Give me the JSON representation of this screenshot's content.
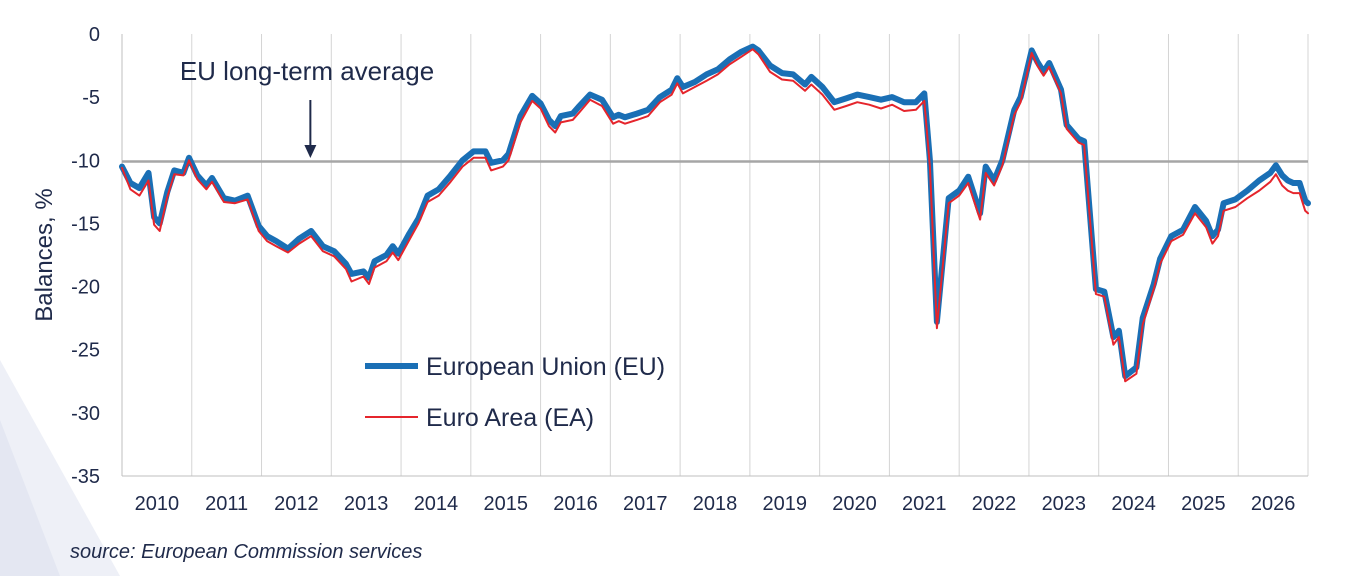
{
  "chart_data": {
    "type": "line",
    "title": "",
    "ylabel": "Balances, %",
    "xlabel": "",
    "ylim": [
      -35,
      0
    ],
    "xlim": [
      2009.5,
      2026.5
    ],
    "yticks": [
      "0",
      "-5",
      "-10",
      "-15",
      "-20",
      "-25",
      "-30",
      "-35"
    ],
    "xticks": [
      "2010",
      "2011",
      "2012",
      "2013",
      "2014",
      "2015",
      "2016",
      "2017",
      "2018",
      "2019",
      "2020",
      "2021",
      "2022",
      "2023",
      "2024",
      "2025",
      "2026"
    ],
    "grid": "vertical",
    "legend_position": "bottom-left",
    "annotation": {
      "text": "EU long-term average",
      "x": 2012.2,
      "y": -10.1
    },
    "reference_line": {
      "y": -10.1
    },
    "series": [
      {
        "name": "European Union (EU)",
        "color": "#1a6fb5",
        "points": [
          [
            2009.5,
            -10.5
          ],
          [
            2009.62,
            -11.8
          ],
          [
            2009.75,
            -12.2
          ],
          [
            2009.88,
            -11.0
          ],
          [
            2009.96,
            -14.5
          ],
          [
            2010.04,
            -15.0
          ],
          [
            2010.15,
            -12.5
          ],
          [
            2010.25,
            -10.8
          ],
          [
            2010.38,
            -11.0
          ],
          [
            2010.46,
            -9.8
          ],
          [
            2010.58,
            -11.2
          ],
          [
            2010.71,
            -12.0
          ],
          [
            2010.79,
            -11.4
          ],
          [
            2010.96,
            -13.0
          ],
          [
            2011.12,
            -13.2
          ],
          [
            2011.3,
            -12.8
          ],
          [
            2011.46,
            -15.2
          ],
          [
            2011.58,
            -16.0
          ],
          [
            2011.71,
            -16.4
          ],
          [
            2011.88,
            -17.0
          ],
          [
            2012.04,
            -16.2
          ],
          [
            2012.21,
            -15.6
          ],
          [
            2012.38,
            -16.8
          ],
          [
            2012.54,
            -17.2
          ],
          [
            2012.71,
            -18.2
          ],
          [
            2012.79,
            -19.0
          ],
          [
            2012.96,
            -18.8
          ],
          [
            2013.04,
            -19.3
          ],
          [
            2013.12,
            -18.0
          ],
          [
            2013.29,
            -17.5
          ],
          [
            2013.38,
            -16.8
          ],
          [
            2013.46,
            -17.4
          ],
          [
            2013.62,
            -15.8
          ],
          [
            2013.75,
            -14.6
          ],
          [
            2013.88,
            -12.8
          ],
          [
            2014.04,
            -12.3
          ],
          [
            2014.21,
            -11.2
          ],
          [
            2014.38,
            -10.0
          ],
          [
            2014.54,
            -9.3
          ],
          [
            2014.71,
            -9.3
          ],
          [
            2014.79,
            -10.2
          ],
          [
            2014.96,
            -10.0
          ],
          [
            2015.04,
            -9.5
          ],
          [
            2015.21,
            -6.5
          ],
          [
            2015.38,
            -4.9
          ],
          [
            2015.5,
            -5.5
          ],
          [
            2015.62,
            -6.8
          ],
          [
            2015.71,
            -7.3
          ],
          [
            2015.79,
            -6.5
          ],
          [
            2015.96,
            -6.3
          ],
          [
            2016.04,
            -5.8
          ],
          [
            2016.21,
            -4.8
          ],
          [
            2016.38,
            -5.2
          ],
          [
            2016.54,
            -6.6
          ],
          [
            2016.62,
            -6.4
          ],
          [
            2016.71,
            -6.6
          ],
          [
            2016.88,
            -6.3
          ],
          [
            2017.04,
            -6.0
          ],
          [
            2017.21,
            -5.0
          ],
          [
            2017.38,
            -4.4
          ],
          [
            2017.46,
            -3.5
          ],
          [
            2017.54,
            -4.2
          ],
          [
            2017.71,
            -3.8
          ],
          [
            2017.88,
            -3.2
          ],
          [
            2018.04,
            -2.8
          ],
          [
            2018.21,
            -2.0
          ],
          [
            2018.38,
            -1.4
          ],
          [
            2018.54,
            -1.0
          ],
          [
            2018.62,
            -1.3
          ],
          [
            2018.79,
            -2.5
          ],
          [
            2018.96,
            -3.1
          ],
          [
            2019.12,
            -3.2
          ],
          [
            2019.29,
            -4.0
          ],
          [
            2019.38,
            -3.4
          ],
          [
            2019.54,
            -4.2
          ],
          [
            2019.71,
            -5.4
          ],
          [
            2019.88,
            -5.1
          ],
          [
            2020.04,
            -4.8
          ],
          [
            2020.21,
            -5.0
          ],
          [
            2020.38,
            -5.2
          ],
          [
            2020.54,
            -5.0
          ],
          [
            2020.71,
            -5.4
          ],
          [
            2020.88,
            -5.4
          ],
          [
            2021.0,
            -4.7
          ],
          [
            2021.08,
            -10.0
          ],
          [
            2021.18,
            -22.8
          ],
          [
            2021.35,
            -13.0
          ],
          [
            2021.5,
            -12.4
          ],
          [
            2021.63,
            -11.3
          ],
          [
            2021.8,
            -14.2
          ],
          [
            2021.88,
            -10.5
          ],
          [
            2022.0,
            -11.6
          ],
          [
            2022.12,
            -10.0
          ],
          [
            2022.29,
            -6.0
          ],
          [
            2022.38,
            -5.0
          ],
          [
            2022.54,
            -1.3
          ],
          [
            2022.62,
            -2.2
          ],
          [
            2022.71,
            -3.0
          ],
          [
            2022.79,
            -2.3
          ],
          [
            2022.96,
            -4.4
          ],
          [
            2023.04,
            -7.2
          ],
          [
            2023.21,
            -8.3
          ],
          [
            2023.29,
            -8.5
          ],
          [
            2023.46,
            -20.2
          ],
          [
            2023.58,
            -20.4
          ],
          [
            2023.71,
            -24.0
          ],
          [
            2023.79,
            -23.5
          ],
          [
            2023.88,
            -27.1
          ],
          [
            2024.04,
            -26.4
          ],
          [
            2024.13,
            -22.5
          ],
          [
            2024.29,
            -19.8
          ],
          [
            2024.38,
            -17.8
          ],
          [
            2024.54,
            -16.0
          ],
          [
            2024.71,
            -15.5
          ],
          [
            2024.88,
            -13.7
          ],
          [
            2025.04,
            -14.8
          ],
          [
            2025.13,
            -16.0
          ],
          [
            2025.21,
            -15.5
          ],
          [
            2025.29,
            -13.4
          ],
          [
            2025.46,
            -13.1
          ],
          [
            2025.63,
            -12.4
          ],
          [
            2025.8,
            -11.6
          ],
          [
            2025.96,
            -11.0
          ],
          [
            2026.04,
            -10.4
          ],
          [
            2026.13,
            -11.2
          ],
          [
            2026.21,
            -11.6
          ],
          [
            2026.29,
            -11.8
          ],
          [
            2026.38,
            -11.8
          ],
          [
            2026.46,
            -13.2
          ],
          [
            2026.5,
            -13.4
          ]
        ]
      },
      {
        "name": "Euro Area (EA)",
        "color": "#e5252c",
        "points": [
          [
            2009.5,
            -10.6
          ],
          [
            2009.62,
            -12.3
          ],
          [
            2009.75,
            -12.8
          ],
          [
            2009.88,
            -11.6
          ],
          [
            2009.96,
            -15.1
          ],
          [
            2010.04,
            -15.6
          ],
          [
            2010.15,
            -12.9
          ],
          [
            2010.25,
            -11.1
          ],
          [
            2010.38,
            -11.2
          ],
          [
            2010.46,
            -10.0
          ],
          [
            2010.58,
            -11.5
          ],
          [
            2010.71,
            -12.3
          ],
          [
            2010.79,
            -11.7
          ],
          [
            2010.96,
            -13.3
          ],
          [
            2011.12,
            -13.4
          ],
          [
            2011.3,
            -13.1
          ],
          [
            2011.46,
            -15.6
          ],
          [
            2011.58,
            -16.4
          ],
          [
            2011.71,
            -16.8
          ],
          [
            2011.88,
            -17.3
          ],
          [
            2012.04,
            -16.6
          ],
          [
            2012.21,
            -16.0
          ],
          [
            2012.38,
            -17.2
          ],
          [
            2012.54,
            -17.6
          ],
          [
            2012.71,
            -18.6
          ],
          [
            2012.79,
            -19.6
          ],
          [
            2012.96,
            -19.2
          ],
          [
            2013.04,
            -19.8
          ],
          [
            2013.12,
            -18.5
          ],
          [
            2013.29,
            -18.0
          ],
          [
            2013.38,
            -17.3
          ],
          [
            2013.46,
            -17.9
          ],
          [
            2013.62,
            -16.3
          ],
          [
            2013.75,
            -15.0
          ],
          [
            2013.88,
            -13.3
          ],
          [
            2014.04,
            -12.8
          ],
          [
            2014.21,
            -11.7
          ],
          [
            2014.38,
            -10.5
          ],
          [
            2014.54,
            -9.8
          ],
          [
            2014.71,
            -9.8
          ],
          [
            2014.79,
            -10.8
          ],
          [
            2014.96,
            -10.5
          ],
          [
            2015.04,
            -10.0
          ],
          [
            2015.21,
            -7.0
          ],
          [
            2015.38,
            -5.3
          ],
          [
            2015.5,
            -5.9
          ],
          [
            2015.62,
            -7.3
          ],
          [
            2015.71,
            -7.8
          ],
          [
            2015.79,
            -7.0
          ],
          [
            2015.96,
            -6.8
          ],
          [
            2016.04,
            -6.3
          ],
          [
            2016.21,
            -5.2
          ],
          [
            2016.38,
            -5.7
          ],
          [
            2016.54,
            -7.1
          ],
          [
            2016.62,
            -6.9
          ],
          [
            2016.71,
            -7.1
          ],
          [
            2016.88,
            -6.8
          ],
          [
            2017.04,
            -6.5
          ],
          [
            2017.21,
            -5.4
          ],
          [
            2017.38,
            -4.8
          ],
          [
            2017.46,
            -3.9
          ],
          [
            2017.54,
            -4.7
          ],
          [
            2017.71,
            -4.2
          ],
          [
            2017.88,
            -3.7
          ],
          [
            2018.04,
            -3.2
          ],
          [
            2018.21,
            -2.4
          ],
          [
            2018.38,
            -1.8
          ],
          [
            2018.54,
            -1.2
          ],
          [
            2018.62,
            -1.6
          ],
          [
            2018.79,
            -3.0
          ],
          [
            2018.96,
            -3.6
          ],
          [
            2019.12,
            -3.7
          ],
          [
            2019.29,
            -4.5
          ],
          [
            2019.38,
            -4.0
          ],
          [
            2019.54,
            -4.8
          ],
          [
            2019.71,
            -6.0
          ],
          [
            2019.88,
            -5.7
          ],
          [
            2020.04,
            -5.4
          ],
          [
            2020.21,
            -5.6
          ],
          [
            2020.38,
            -5.9
          ],
          [
            2020.54,
            -5.6
          ],
          [
            2020.71,
            -6.1
          ],
          [
            2020.88,
            -6.0
          ],
          [
            2021.0,
            -5.3
          ],
          [
            2021.08,
            -10.5
          ],
          [
            2021.18,
            -23.3
          ],
          [
            2021.35,
            -13.4
          ],
          [
            2021.5,
            -12.8
          ],
          [
            2021.63,
            -11.8
          ],
          [
            2021.8,
            -14.7
          ],
          [
            2021.88,
            -11.0
          ],
          [
            2022.0,
            -12.0
          ],
          [
            2022.12,
            -10.4
          ],
          [
            2022.29,
            -6.4
          ],
          [
            2022.38,
            -5.4
          ],
          [
            2022.54,
            -1.5
          ],
          [
            2022.62,
            -2.5
          ],
          [
            2022.71,
            -3.3
          ],
          [
            2022.79,
            -2.6
          ],
          [
            2022.96,
            -4.7
          ],
          [
            2023.04,
            -7.5
          ],
          [
            2023.21,
            -8.6
          ],
          [
            2023.29,
            -8.8
          ],
          [
            2023.46,
            -20.6
          ],
          [
            2023.58,
            -20.8
          ],
          [
            2023.71,
            -24.6
          ],
          [
            2023.79,
            -24.0
          ],
          [
            2023.88,
            -27.5
          ],
          [
            2024.04,
            -26.9
          ],
          [
            2024.13,
            -23.0
          ],
          [
            2024.29,
            -20.2
          ],
          [
            2024.38,
            -18.2
          ],
          [
            2024.54,
            -16.4
          ],
          [
            2024.71,
            -15.9
          ],
          [
            2024.88,
            -14.2
          ],
          [
            2025.04,
            -15.3
          ],
          [
            2025.13,
            -16.6
          ],
          [
            2025.21,
            -16.0
          ],
          [
            2025.29,
            -14.0
          ],
          [
            2025.46,
            -13.7
          ],
          [
            2025.63,
            -13.0
          ],
          [
            2025.8,
            -12.4
          ],
          [
            2025.96,
            -11.7
          ],
          [
            2026.04,
            -11.1
          ],
          [
            2026.13,
            -12.0
          ],
          [
            2026.21,
            -12.4
          ],
          [
            2026.29,
            -12.6
          ],
          [
            2026.38,
            -12.6
          ],
          [
            2026.46,
            -14.0
          ],
          [
            2026.5,
            -14.2
          ]
        ]
      }
    ]
  },
  "footer": {
    "source": "source: European Commission services"
  }
}
